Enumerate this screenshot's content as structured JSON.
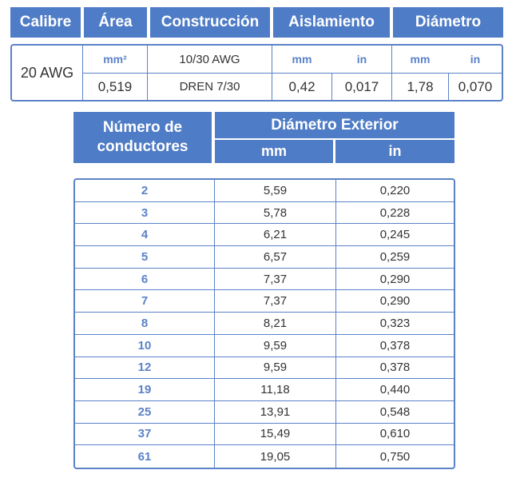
{
  "spec": {
    "headers": {
      "calibre": "Calibre",
      "area": "Área",
      "construccion": "Construcción",
      "aislamiento": "Aislamiento",
      "diametro": "Diámetro"
    },
    "calibre_value": "20 AWG",
    "units_row": {
      "area_unit": "mm²",
      "construccion": "10/30 AWG",
      "aisl_mm": "mm",
      "aisl_in": "in",
      "diam_mm": "mm",
      "diam_in": "in"
    },
    "values_row": {
      "area": "0,519",
      "construccion": "DREN 7/30",
      "aisl_mm": "0,42",
      "aisl_in": "0,017",
      "diam_mm": "1,78",
      "diam_in": "0,070"
    }
  },
  "conductors": {
    "header_col1": "Número de\nconductores",
    "header_group": "Diámetro Exterior",
    "unit_mm": "mm",
    "unit_in": "in",
    "rows": [
      {
        "n": "2",
        "mm": "5,59",
        "in": "0,220"
      },
      {
        "n": "3",
        "mm": "5,78",
        "in": "0,228"
      },
      {
        "n": "4",
        "mm": "6,21",
        "in": "0,245"
      },
      {
        "n": "5",
        "mm": "6,57",
        "in": "0,259"
      },
      {
        "n": "6",
        "mm": "7,37",
        "in": "0,290"
      },
      {
        "n": "7",
        "mm": "7,37",
        "in": "0,290"
      },
      {
        "n": "8",
        "mm": "8,21",
        "in": "0,323"
      },
      {
        "n": "10",
        "mm": "9,59",
        "in": "0,378"
      },
      {
        "n": "12",
        "mm": "9,59",
        "in": "0,378"
      },
      {
        "n": "19",
        "mm": "11,18",
        "in": "0,440"
      },
      {
        "n": "25",
        "mm": "13,91",
        "in": "0,548"
      },
      {
        "n": "37",
        "mm": "15,49",
        "in": "0,610"
      },
      {
        "n": "61",
        "mm": "19,05",
        "in": "0,750"
      }
    ]
  }
}
